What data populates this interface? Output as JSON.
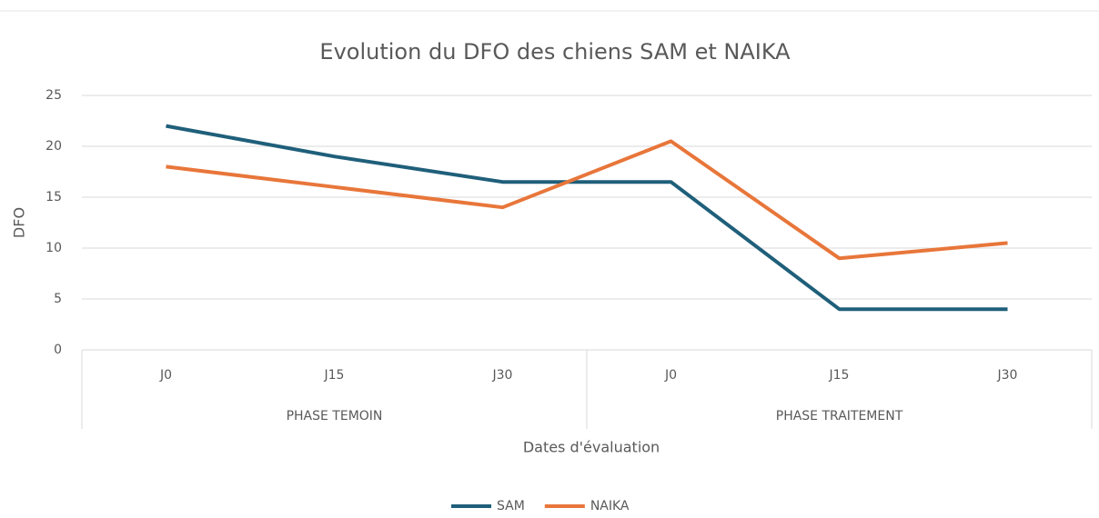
{
  "chart_data": {
    "type": "line",
    "title": "Evolution du DFO des chiens SAM et NAIKA",
    "x_label": "Dates d'évaluation",
    "y_label": "DFO",
    "groups": [
      {
        "label": "PHASE TEMOIN",
        "categories": [
          "J0",
          "J15",
          "J30"
        ]
      },
      {
        "label": "PHASE TRAITEMENT",
        "categories": [
          "J0",
          "J15",
          "J30"
        ]
      }
    ],
    "series": [
      {
        "name": "SAM",
        "color": "#1f5f7a",
        "values": [
          22,
          19,
          16.5,
          16.5,
          4,
          4
        ]
      },
      {
        "name": "NAIKA",
        "color": "#e8763a",
        "values": [
          18,
          16,
          14,
          20.5,
          9,
          10.5
        ]
      }
    ],
    "ylim": [
      0,
      25
    ],
    "yticks": [
      0,
      5,
      10,
      15,
      20,
      25
    ],
    "grid": true,
    "legend": "bottom"
  }
}
